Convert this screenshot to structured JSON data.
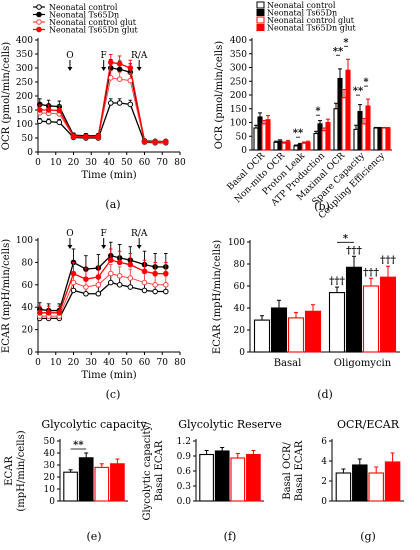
{
  "chart_data": [
    {
      "id": "a",
      "type": "line",
      "panel_label": "(a)",
      "xlabel": "Time (min)",
      "ylabel": "OCR (pmol/min/cells)",
      "xlim": [
        0,
        80
      ],
      "ylim": [
        0,
        400
      ],
      "xticks": [
        0,
        10,
        20,
        30,
        40,
        50,
        60,
        70,
        80
      ],
      "yticks": [
        0,
        50,
        100,
        150,
        200,
        250,
        300,
        350,
        400
      ],
      "legend": [
        "Neonatal control",
        "Neonatal Ts65Dn",
        "Neonatal control glut",
        "Neonatal Ts65Dn glut"
      ],
      "injections": [
        {
          "label": "O",
          "x": 18
        },
        {
          "label": "F",
          "x": 37
        },
        {
          "label": "R/A",
          "x": 57
        }
      ],
      "x": [
        1,
        6,
        12,
        20,
        27,
        34,
        41,
        46,
        52,
        60,
        66,
        72
      ],
      "series": [
        {
          "name": "Neonatal control",
          "values": [
            110,
            108,
            106,
            52,
            50,
            50,
            175,
            175,
            170,
            35,
            33,
            33
          ],
          "error": [
            10,
            10,
            10,
            6,
            6,
            6,
            15,
            15,
            15,
            5,
            5,
            5
          ]
        },
        {
          "name": "Neonatal Ts65Dn",
          "values": [
            170,
            165,
            162,
            60,
            58,
            58,
            300,
            295,
            285,
            40,
            38,
            38
          ],
          "error": [
            20,
            20,
            20,
            8,
            8,
            8,
            30,
            30,
            30,
            6,
            6,
            6
          ]
        },
        {
          "name": "Neonatal control glut",
          "values": [
            140,
            138,
            136,
            55,
            53,
            53,
            265,
            260,
            255,
            36,
            35,
            35
          ],
          "error": [
            15,
            15,
            15,
            6,
            6,
            6,
            25,
            25,
            25,
            5,
            5,
            5
          ]
        },
        {
          "name": "Neonatal Ts65Dn glut",
          "values": [
            150,
            150,
            148,
            57,
            55,
            55,
            320,
            315,
            300,
            38,
            37,
            37
          ],
          "error": [
            18,
            18,
            18,
            7,
            7,
            7,
            28,
            28,
            28,
            5,
            5,
            5
          ]
        }
      ]
    },
    {
      "id": "b",
      "type": "bar",
      "panel_label": "(b)",
      "ylabel": "OCR (pmol/min/cells)",
      "ylim": [
        0,
        400
      ],
      "yticks": [
        0,
        50,
        100,
        150,
        200,
        250,
        300,
        350,
        400
      ],
      "legend": [
        "Neonatal control",
        "Neonatal Ts65Dn",
        "Neonatal control glut",
        "Neonatal Ts65Dn glut"
      ],
      "categories": [
        "Basal OCR",
        "Non-mito OCR",
        "Proton Leak",
        "ATP Production",
        "Maximal OCR",
        "Spare Capacity",
        "Coupling Efficiency"
      ],
      "series": [
        {
          "name": "Neonatal control",
          "values": [
            80,
            28,
            15,
            60,
            150,
            75,
            80
          ],
          "error": [
            10,
            4,
            3,
            8,
            20,
            15,
            2
          ]
        },
        {
          "name": "Neonatal Ts65Dn",
          "values": [
            120,
            32,
            20,
            95,
            260,
            140,
            80
          ],
          "error": [
            15,
            5,
            4,
            12,
            35,
            25,
            2
          ]
        },
        {
          "name": "Neonatal control glut",
          "values": [
            95,
            25,
            25,
            70,
            190,
            95,
            80
          ],
          "error": [
            12,
            4,
            4,
            10,
            30,
            20,
            2
          ]
        },
        {
          "name": "Neonatal Ts65Dn glut",
          "values": [
            110,
            30,
            28,
            100,
            290,
            160,
            80
          ],
          "error": [
            15,
            5,
            4,
            12,
            40,
            25,
            2
          ]
        }
      ],
      "annotations": [
        {
          "label": "**",
          "category": 2
        },
        {
          "label": "*",
          "category": 3
        },
        {
          "label": "**",
          "category": 4
        },
        {
          "label": "*",
          "category": 4
        },
        {
          "label": "**",
          "category": 5
        },
        {
          "label": "*",
          "category": 5
        }
      ]
    },
    {
      "id": "c",
      "type": "line",
      "panel_label": "(c)",
      "xlabel": "Time (min)",
      "ylabel": "ECAR (mpH/min/cells)",
      "xlim": [
        0,
        80
      ],
      "ylim": [
        0,
        100
      ],
      "xticks": [
        0,
        10,
        20,
        30,
        40,
        50,
        60,
        70,
        80
      ],
      "yticks": [
        0,
        20,
        40,
        60,
        80,
        100
      ],
      "injections": [
        {
          "label": "O",
          "x": 18
        },
        {
          "label": "F",
          "x": 37
        },
        {
          "label": "R/A",
          "x": 57
        }
      ],
      "x": [
        1,
        6,
        12,
        20,
        27,
        34,
        41,
        46,
        52,
        60,
        66,
        72
      ],
      "series": [
        {
          "name": "Neonatal control",
          "values": [
            30,
            30,
            30,
            55,
            52,
            52,
            62,
            60,
            58,
            55,
            54,
            54
          ],
          "error": [
            4,
            4,
            4,
            6,
            6,
            6,
            7,
            7,
            7,
            6,
            6,
            6
          ]
        },
        {
          "name": "Neonatal Ts65Dn",
          "values": [
            38,
            37,
            37,
            80,
            74,
            75,
            86,
            84,
            82,
            78,
            76,
            76
          ],
          "error": [
            6,
            6,
            6,
            12,
            12,
            12,
            12,
            12,
            12,
            12,
            12,
            12
          ]
        },
        {
          "name": "Neonatal control glut",
          "values": [
            32,
            32,
            32,
            62,
            58,
            60,
            70,
            68,
            66,
            62,
            60,
            60
          ],
          "error": [
            5,
            5,
            5,
            8,
            8,
            8,
            8,
            8,
            8,
            8,
            8,
            8
          ]
        },
        {
          "name": "Neonatal Ts65Dn glut",
          "values": [
            35,
            35,
            35,
            70,
            65,
            67,
            82,
            80,
            78,
            72,
            70,
            70
          ],
          "error": [
            6,
            6,
            6,
            10,
            10,
            10,
            10,
            10,
            10,
            10,
            10,
            10
          ]
        }
      ]
    },
    {
      "id": "d",
      "type": "bar",
      "panel_label": "(d)",
      "ylabel": "ECAR (mpH/min/cells)",
      "ylim": [
        0,
        100
      ],
      "yticks": [
        0,
        20,
        40,
        60,
        80,
        100
      ],
      "categories": [
        "Basal",
        "Oligomycin"
      ],
      "series": [
        {
          "name": "Neonatal control",
          "values": [
            29,
            54
          ],
          "error": [
            4,
            5
          ]
        },
        {
          "name": "Neonatal Ts65Dn",
          "values": [
            40,
            77
          ],
          "error": [
            7,
            10
          ]
        },
        {
          "name": "Neonatal control glut",
          "values": [
            31,
            60
          ],
          "error": [
            5,
            7
          ]
        },
        {
          "name": "Neonatal Ts65Dn glut",
          "values": [
            37,
            68
          ],
          "error": [
            6,
            10
          ]
        }
      ],
      "annotations": [
        {
          "label": "*",
          "category": 1
        },
        {
          "label": "†††",
          "category": 1,
          "series": 0
        },
        {
          "label": "†††",
          "category": 1,
          "series": 1
        },
        {
          "label": "†††",
          "category": 1,
          "series": 2
        },
        {
          "label": "†††",
          "category": 1,
          "series": 3
        }
      ]
    },
    {
      "id": "e",
      "type": "bar",
      "panel_label": "(e)",
      "title": "Glycolytic capacity",
      "ylabel": "ECAR (mpH/min/cells)",
      "ylim": [
        0,
        50
      ],
      "yticks": [
        0,
        10,
        20,
        30,
        40,
        50
      ],
      "categories": [
        ""
      ],
      "series": [
        {
          "name": "Neonatal control",
          "values": [
            24
          ],
          "error": [
            2
          ]
        },
        {
          "name": "Neonatal Ts65Dn",
          "values": [
            36
          ],
          "error": [
            4
          ]
        },
        {
          "name": "Neonatal control glut",
          "values": [
            28
          ],
          "error": [
            3
          ]
        },
        {
          "name": "Neonatal Ts65Dn glut",
          "values": [
            31
          ],
          "error": [
            4
          ]
        }
      ],
      "annotations": [
        {
          "label": "**"
        }
      ]
    },
    {
      "id": "f",
      "type": "bar",
      "panel_label": "(f)",
      "title": "Glycolytic Reserve",
      "ylabel": "Glycolytic capacity/ Basal ECAR",
      "ylim": [
        0,
        1.2
      ],
      "yticks": [
        0,
        0.3,
        0.6,
        0.9,
        1.2
      ],
      "ytick_labels": [
        "0.0",
        "0.3",
        "0.6",
        "0.9",
        "1.2"
      ],
      "categories": [
        ""
      ],
      "series": [
        {
          "name": "Neonatal control",
          "values": [
            0.93
          ],
          "error": [
            0.08
          ]
        },
        {
          "name": "Neonatal Ts65Dn",
          "values": [
            1.0
          ],
          "error": [
            0.07
          ]
        },
        {
          "name": "Neonatal control glut",
          "values": [
            0.86
          ],
          "error": [
            0.09
          ]
        },
        {
          "name": "Neonatal Ts65Dn glut",
          "values": [
            0.93
          ],
          "error": [
            0.08
          ]
        }
      ]
    },
    {
      "id": "g",
      "type": "bar",
      "panel_label": "(g)",
      "title": "OCR/ECAR",
      "ylabel": "Basal OCR/ Basal ECAR",
      "ylim": [
        0,
        6
      ],
      "yticks": [
        0,
        2,
        4,
        6
      ],
      "categories": [
        ""
      ],
      "series": [
        {
          "name": "Neonatal control",
          "values": [
            2.8
          ],
          "error": [
            0.4
          ]
        },
        {
          "name": "Neonatal Ts65Dn",
          "values": [
            3.6
          ],
          "error": [
            0.6
          ]
        },
        {
          "name": "Neonatal control glut",
          "values": [
            2.8
          ],
          "error": [
            0.6
          ]
        },
        {
          "name": "Neonatal Ts65Dn glut",
          "values": [
            3.9
          ],
          "error": [
            0.9
          ]
        }
      ]
    }
  ],
  "styles": {
    "colors": [
      "#ffffff",
      "#000000",
      "#ffffff",
      "#ff0000"
    ],
    "strokes": [
      "#000000",
      "#000000",
      "#ff0000",
      "#ff0000"
    ],
    "line_colors": [
      "#000000",
      "#000000",
      "#ff4040",
      "#ff0000"
    ],
    "markers": [
      "circle-open",
      "circle-filled",
      "circle-open",
      "circle-filled"
    ]
  }
}
